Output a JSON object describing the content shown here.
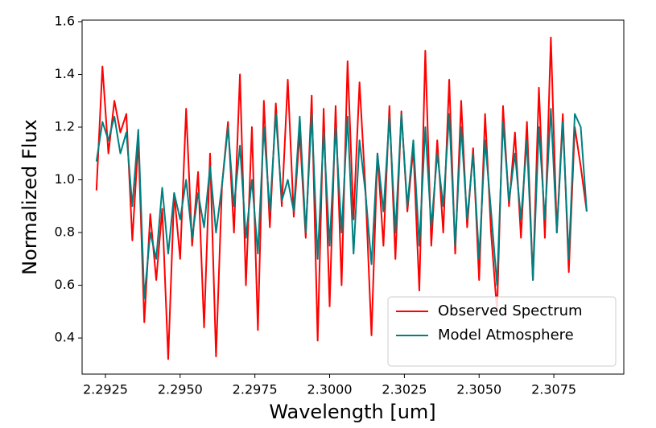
{
  "chart_data": {
    "type": "line",
    "xlabel": "Wavelength [um]",
    "ylabel": "Normalized Flux",
    "x": [
      2.2922,
      2.2924,
      2.2926,
      2.2928,
      2.293,
      2.2932,
      2.2934,
      2.2936,
      2.2938,
      2.294,
      2.2942,
      2.2944,
      2.2946,
      2.2948,
      2.295,
      2.2952,
      2.2954,
      2.2956,
      2.2958,
      2.296,
      2.2962,
      2.2964,
      2.2966,
      2.2968,
      2.297,
      2.2972,
      2.2974,
      2.2976,
      2.2978,
      2.298,
      2.2982,
      2.2984,
      2.2986,
      2.2988,
      2.299,
      2.2992,
      2.2994,
      2.2996,
      2.2998,
      2.3,
      2.3002,
      2.3004,
      2.3006,
      2.3008,
      2.301,
      2.3012,
      2.3014,
      2.3016,
      2.3018,
      2.302,
      2.3022,
      2.3024,
      2.3026,
      2.3028,
      2.303,
      2.3032,
      2.3034,
      2.3036,
      2.3038,
      2.304,
      2.3042,
      2.3044,
      2.3046,
      2.3048,
      2.305,
      2.3052,
      2.3054,
      2.3056,
      2.3058,
      2.306,
      2.3062,
      2.3064,
      2.3066,
      2.3068,
      2.307,
      2.3072,
      2.3074,
      2.3076,
      2.3078,
      2.308,
      2.3082,
      2.3084,
      2.3086
    ],
    "series": [
      {
        "name": "Observed Spectrum",
        "color": "#ff0000",
        "values": [
          0.96,
          1.43,
          1.1,
          1.3,
          1.18,
          1.25,
          0.77,
          1.15,
          0.46,
          0.87,
          0.62,
          0.89,
          0.32,
          0.95,
          0.7,
          1.27,
          0.75,
          1.03,
          0.44,
          1.1,
          0.33,
          0.98,
          1.22,
          0.8,
          1.4,
          0.6,
          1.2,
          0.43,
          1.3,
          0.82,
          1.29,
          0.9,
          1.38,
          0.86,
          1.18,
          0.78,
          1.32,
          0.39,
          1.27,
          0.52,
          1.28,
          0.6,
          1.45,
          0.85,
          1.37,
          0.96,
          0.41,
          1.1,
          0.75,
          1.28,
          0.7,
          1.26,
          0.88,
          1.12,
          0.58,
          1.49,
          0.75,
          1.15,
          0.8,
          1.38,
          0.72,
          1.3,
          0.82,
          1.12,
          0.62,
          1.25,
          0.8,
          0.5,
          1.28,
          0.9,
          1.18,
          0.78,
          1.22,
          0.62,
          1.35,
          0.78,
          1.54,
          0.8,
          1.25,
          0.65,
          1.2,
          1.05,
          0.88
        ]
      },
      {
        "name": "Model Atmosphere",
        "color": "#008080",
        "values": [
          1.07,
          1.22,
          1.15,
          1.24,
          1.1,
          1.18,
          0.9,
          1.19,
          0.55,
          0.8,
          0.7,
          0.97,
          0.72,
          0.95,
          0.85,
          1.0,
          0.78,
          0.95,
          0.82,
          1.05,
          0.8,
          0.98,
          1.2,
          0.9,
          1.13,
          0.78,
          1.0,
          0.72,
          1.2,
          0.88,
          1.25,
          0.92,
          1.0,
          0.88,
          1.24,
          0.8,
          1.25,
          0.7,
          1.18,
          0.75,
          1.2,
          0.8,
          1.24,
          0.72,
          1.15,
          0.95,
          0.68,
          1.1,
          0.88,
          1.24,
          0.8,
          1.25,
          0.9,
          1.15,
          0.75,
          1.2,
          0.82,
          1.1,
          0.9,
          1.25,
          0.75,
          1.2,
          0.85,
          1.1,
          0.7,
          1.15,
          0.88,
          0.6,
          1.22,
          0.92,
          1.1,
          0.85,
          1.15,
          0.62,
          1.2,
          0.85,
          1.27,
          0.8,
          1.22,
          0.7,
          1.25,
          1.2,
          0.88
        ]
      }
    ],
    "xlim": [
      2.29172,
      2.30984
    ],
    "ylim": [
      0.263,
      1.606
    ],
    "xticks": [
      2.2925,
      {
        "value": 2.295,
        "label": "2.2950"
      },
      2.2975,
      {
        "value": 2.3,
        "label": "2.3000"
      },
      2.3025,
      {
        "value": 2.305,
        "label": "2.3050"
      },
      2.3075
    ],
    "yticks": [
      0.4,
      0.6,
      0.8,
      {
        "value": 1.0,
        "label": "1.0"
      },
      1.2,
      1.4,
      1.6
    ],
    "legend": "lower right",
    "grid": false
  }
}
